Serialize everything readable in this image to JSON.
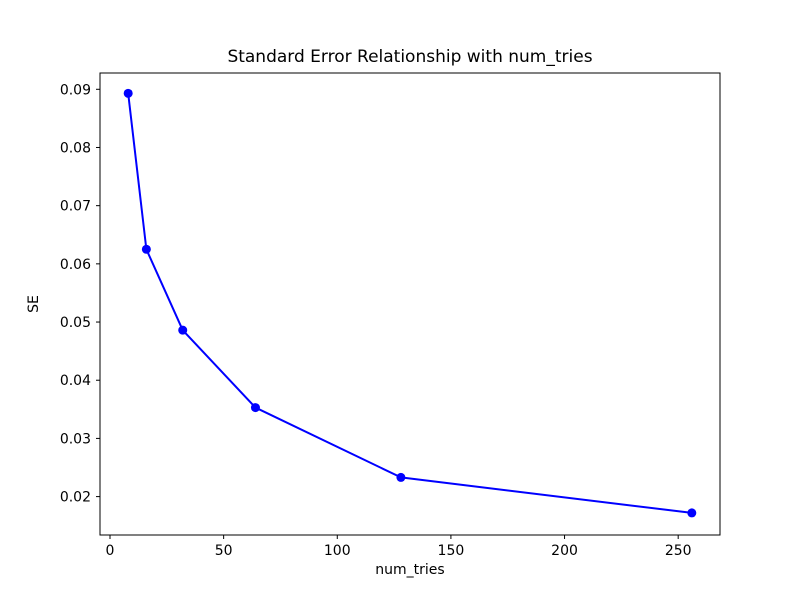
{
  "chart_data": {
    "type": "line",
    "title": "Standard Error Relationship with num_tries",
    "xlabel": "num_tries",
    "ylabel": "SE",
    "x": [
      8,
      16,
      32,
      64,
      128,
      256
    ],
    "y": [
      0.0893,
      0.0625,
      0.0486,
      0.0353,
      0.0233,
      0.0172
    ],
    "xlim": [
      -4.4,
      268.4
    ],
    "ylim": [
      0.0134,
      0.0928
    ],
    "xticks": [
      0,
      50,
      100,
      150,
      200,
      250
    ],
    "yticks": [
      0.02,
      0.03,
      0.04,
      0.05,
      0.06,
      0.07,
      0.08,
      0.09
    ],
    "ytick_decimals": 2,
    "line_color": "#0000ff",
    "marker": "circle",
    "marker_color": "#0000ff",
    "spine_color": "#000000",
    "text_color": "#000000",
    "background": "#ffffff",
    "grid": false,
    "legend_position": "none"
  }
}
